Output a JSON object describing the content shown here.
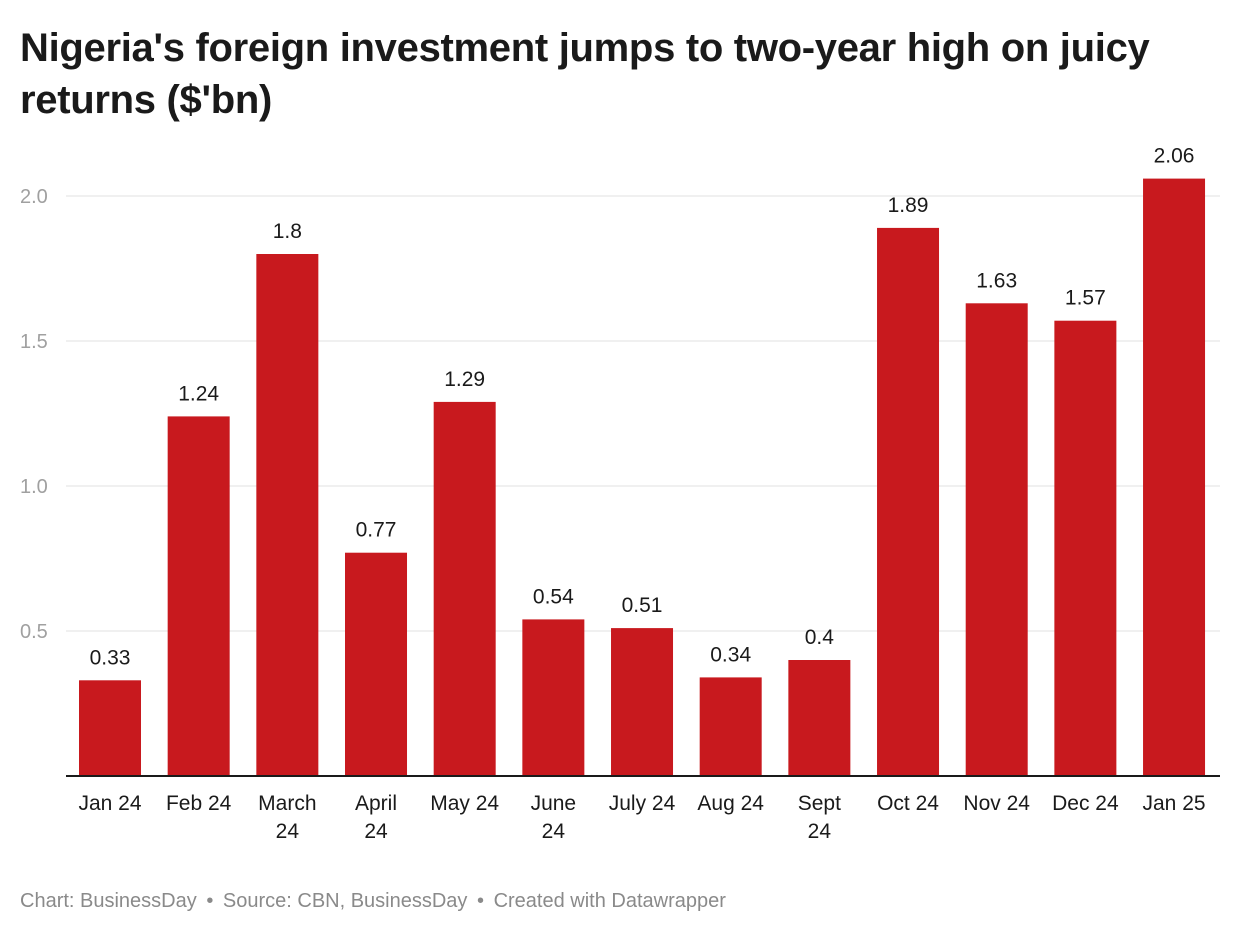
{
  "chart_data": {
    "type": "bar",
    "title": "Nigeria's foreign investment jumps to two-year high on juicy returns ($'bn)",
    "categories": [
      "Jan 24",
      "Feb 24",
      "March 24",
      "April 24",
      "May 24",
      "June 24",
      "July 24",
      "Aug 24",
      "Sept 24",
      "Oct 24",
      "Nov 24",
      "Dec 24",
      "Jan 25"
    ],
    "category_lines": [
      [
        "Jan 24"
      ],
      [
        "Feb 24"
      ],
      [
        "March",
        "24"
      ],
      [
        "April",
        "24"
      ],
      [
        "May 24"
      ],
      [
        "June",
        "24"
      ],
      [
        "July 24"
      ],
      [
        "Aug 24"
      ],
      [
        "Sept",
        "24"
      ],
      [
        "Oct 24"
      ],
      [
        "Nov 24"
      ],
      [
        "Dec 24"
      ],
      [
        "Jan 25"
      ]
    ],
    "values": [
      0.33,
      1.24,
      1.8,
      0.77,
      1.29,
      0.54,
      0.51,
      0.34,
      0.4,
      1.89,
      1.63,
      1.57,
      2.06
    ],
    "value_labels": [
      "0.33",
      "1.24",
      "1.8",
      "0.77",
      "1.29",
      "0.54",
      "0.51",
      "0.34",
      "0.4",
      "1.89",
      "1.63",
      "1.57",
      "2.06"
    ],
    "ylim": [
      0,
      2.1
    ],
    "yticks": [
      0.5,
      1.0,
      1.5,
      2.0
    ],
    "ytick_labels": [
      "0.5",
      "1.0",
      "1.5",
      "2.0"
    ],
    "grid": true,
    "bar_color": "#c8191e",
    "grid_color": "#e0e0e0",
    "tick_label_color": "#a0a0a0",
    "xlabel": "",
    "ylabel": ""
  },
  "footer": {
    "chart_credit": "Chart: BusinessDay",
    "source": "Source: CBN, BusinessDay",
    "created_with": "Created with Datawrapper",
    "separator": "•"
  }
}
